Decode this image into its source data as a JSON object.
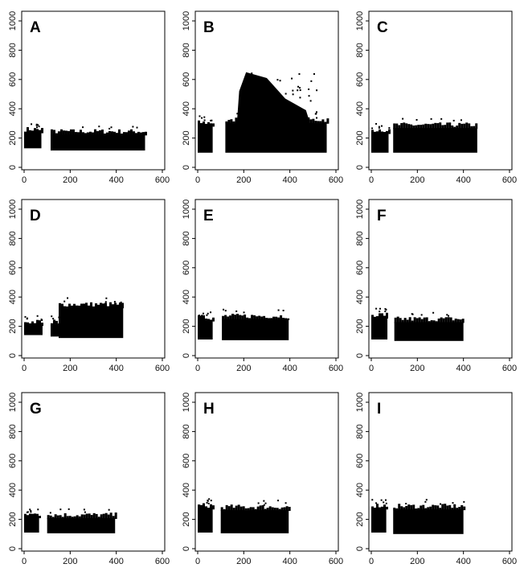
{
  "chart_data": [
    {
      "type": "scatter",
      "panel": "A",
      "xlim": [
        0,
        600
      ],
      "ylim": [
        0,
        1000
      ],
      "xticks": [
        0,
        200,
        400,
        600
      ],
      "yticks": [
        0,
        200,
        400,
        600,
        800,
        1000
      ],
      "x_tick_labels": [
        "0",
        "200",
        "400",
        "600"
      ],
      "y_tick_labels": [
        "0",
        "200",
        "400",
        "600",
        "800",
        "1000"
      ],
      "blocks": [
        {
          "x": [
            0,
            75
          ],
          "y": [
            130,
            255
          ]
        },
        {
          "x": [
            115,
            525
          ],
          "y": [
            115,
            240
          ]
        }
      ],
      "cloud": null
    },
    {
      "type": "scatter",
      "panel": "B",
      "xlim": [
        0,
        600
      ],
      "ylim": [
        0,
        1000
      ],
      "xticks": [
        0,
        200,
        400,
        600
      ],
      "yticks": [
        0,
        200,
        400,
        600,
        800,
        1000
      ],
      "x_tick_labels": [
        "0",
        "200",
        "400",
        "600"
      ],
      "y_tick_labels": [
        "0",
        "200",
        "400",
        "600",
        "800",
        "1000"
      ],
      "blocks": [
        {
          "x": [
            0,
            65
          ],
          "y": [
            100,
            300
          ]
        },
        {
          "x": [
            120,
            560
          ],
          "y": [
            100,
            320
          ]
        }
      ],
      "cloud": {
        "x": [
          170,
          480
        ],
        "y": [
          300,
          650
        ]
      }
    },
    {
      "type": "scatter",
      "panel": "C",
      "xlim": [
        0,
        600
      ],
      "ylim": [
        0,
        1000
      ],
      "xticks": [
        0,
        200,
        400,
        600
      ],
      "yticks": [
        0,
        200,
        400,
        600,
        800,
        1000
      ],
      "x_tick_labels": [
        "0",
        "200",
        "400",
        "600"
      ],
      "y_tick_labels": [
        "0",
        "200",
        "400",
        "600",
        "800",
        "1000"
      ],
      "blocks": [
        {
          "x": [
            0,
            75
          ],
          "y": [
            100,
            250
          ]
        },
        {
          "x": [
            95,
            460
          ],
          "y": [
            100,
            285
          ]
        }
      ],
      "cloud": null
    },
    {
      "type": "scatter",
      "panel": "D",
      "xlim": [
        0,
        600
      ],
      "ylim": [
        0,
        1000
      ],
      "xticks": [
        0,
        200,
        400,
        600
      ],
      "yticks": [
        0,
        200,
        400,
        600,
        800,
        1000
      ],
      "x_tick_labels": [
        "0",
        "200",
        "400",
        "600"
      ],
      "y_tick_labels": [
        "0",
        "200",
        "400",
        "600",
        "800",
        "1000"
      ],
      "blocks": [
        {
          "x": [
            0,
            80
          ],
          "y": [
            140,
            225
          ]
        },
        {
          "x": [
            115,
            175
          ],
          "y": [
            130,
            225
          ]
        },
        {
          "x": [
            150,
            430
          ],
          "y": [
            120,
            345
          ]
        }
      ],
      "cloud": null
    },
    {
      "type": "scatter",
      "panel": "E",
      "xlim": [
        0,
        600
      ],
      "ylim": [
        0,
        1000
      ],
      "xticks": [
        0,
        200,
        400,
        600
      ],
      "yticks": [
        0,
        200,
        400,
        600,
        800,
        1000
      ],
      "x_tick_labels": [
        "0",
        "200",
        "400",
        "600"
      ],
      "y_tick_labels": [
        "0",
        "200",
        "400",
        "600",
        "800",
        "1000"
      ],
      "blocks": [
        {
          "x": [
            0,
            65
          ],
          "y": [
            110,
            255
          ]
        },
        {
          "x": [
            105,
            395
          ],
          "y": [
            105,
            265
          ]
        }
      ],
      "cloud": null
    },
    {
      "type": "scatter",
      "panel": "F",
      "xlim": [
        0,
        600
      ],
      "ylim": [
        0,
        1000
      ],
      "xticks": [
        0,
        200,
        400,
        600
      ],
      "yticks": [
        0,
        200,
        400,
        600,
        800,
        1000
      ],
      "x_tick_labels": [
        "0",
        "200",
        "400",
        "600"
      ],
      "y_tick_labels": [
        "0",
        "200",
        "400",
        "600",
        "800",
        "1000"
      ],
      "blocks": [
        {
          "x": [
            0,
            70
          ],
          "y": [
            110,
            275
          ]
        },
        {
          "x": [
            100,
            400
          ],
          "y": [
            100,
            245
          ]
        }
      ],
      "cloud": null
    },
    {
      "type": "scatter",
      "panel": "G",
      "xlim": [
        0,
        600
      ],
      "ylim": [
        0,
        1000
      ],
      "xticks": [
        0,
        200,
        400,
        600
      ],
      "yticks": [
        0,
        200,
        400,
        600,
        800,
        1000
      ],
      "x_tick_labels": [
        "0",
        "200",
        "400",
        "600"
      ],
      "y_tick_labels": [
        "0",
        "200",
        "400",
        "600",
        "800",
        "1000"
      ],
      "blocks": [
        {
          "x": [
            0,
            65
          ],
          "y": [
            110,
            230
          ]
        },
        {
          "x": [
            100,
            395
          ],
          "y": [
            105,
            225
          ]
        }
      ],
      "cloud": null
    },
    {
      "type": "scatter",
      "panel": "H",
      "xlim": [
        0,
        600
      ],
      "ylim": [
        0,
        1000
      ],
      "xticks": [
        0,
        200,
        400,
        600
      ],
      "yticks": [
        0,
        200,
        400,
        600,
        800,
        1000
      ],
      "x_tick_labels": [
        "0",
        "200",
        "400",
        "600"
      ],
      "y_tick_labels": [
        "0",
        "200",
        "400",
        "600",
        "800",
        "1000"
      ],
      "blocks": [
        {
          "x": [
            0,
            65
          ],
          "y": [
            110,
            290
          ]
        },
        {
          "x": [
            100,
            395
          ],
          "y": [
            105,
            280
          ]
        }
      ],
      "cloud": null
    },
    {
      "type": "scatter",
      "panel": "I",
      "xlim": [
        0,
        600
      ],
      "ylim": [
        0,
        1000
      ],
      "xticks": [
        0,
        200,
        400,
        600
      ],
      "yticks": [
        0,
        200,
        400,
        600,
        800,
        1000
      ],
      "x_tick_labels": [
        "0",
        "200",
        "400",
        "600"
      ],
      "y_tick_labels": [
        "0",
        "200",
        "400",
        "600",
        "800",
        "1000"
      ],
      "blocks": [
        {
          "x": [
            0,
            65
          ],
          "y": [
            110,
            290
          ]
        },
        {
          "x": [
            95,
            400
          ],
          "y": [
            100,
            285
          ]
        }
      ],
      "cloud": null
    }
  ],
  "colors": {
    "points": "#000000",
    "frame": "#000000",
    "background": "#ffffff"
  }
}
